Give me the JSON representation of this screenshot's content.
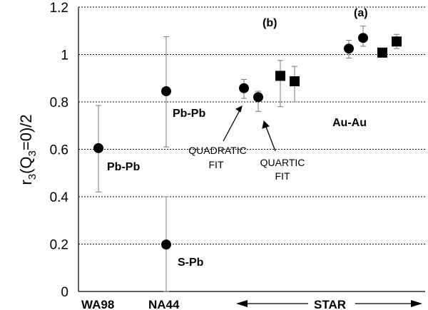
{
  "chart_data": {
    "type": "scatter",
    "ylabel_parts": {
      "r": "r",
      "sub3": "3",
      "open": "(Q",
      "sub3b": "3",
      "rest": "=0)/2"
    },
    "ylim": [
      0,
      1.2
    ],
    "yticks": [
      "0",
      "0.2",
      "0.4",
      "0.6",
      "0.8",
      "1",
      "1.2"
    ],
    "ytick_values": [
      0,
      0.2,
      0.4,
      0.6,
      0.8,
      1.0,
      1.2
    ],
    "grid": "dotted horizontal",
    "x_categories": [
      "WA98",
      "NA44",
      "STAR"
    ],
    "points": [
      {
        "group": "WA98",
        "marker": "circle",
        "y": 0.605,
        "err_low": 0.42,
        "err_high": 0.785
      },
      {
        "group": "NA44",
        "marker": "circle",
        "y": 0.845,
        "err_low": 0.61,
        "err_high": 1.075
      },
      {
        "group": "NA44",
        "marker": "circle",
        "y": 0.198,
        "err_low": 0.0,
        "err_high": 0.4
      },
      {
        "group": "STAR",
        "marker": "circle",
        "y": 0.858,
        "err_low": 0.815,
        "err_high": 0.895
      },
      {
        "group": "STAR",
        "marker": "circle",
        "y": 0.82,
        "err_low": 0.76,
        "err_high": 0.845
      },
      {
        "group": "STAR",
        "marker": "square",
        "y": 0.91,
        "err_low": 0.78,
        "err_high": 0.975
      },
      {
        "group": "STAR",
        "marker": "square",
        "y": 0.887,
        "err_low": 0.8,
        "err_high": 0.95
      },
      {
        "group": "STAR",
        "marker": "circle",
        "y": 1.025,
        "err_low": 0.985,
        "err_high": 1.06
      },
      {
        "group": "STAR",
        "marker": "circle",
        "y": 1.07,
        "err_low": 1.035,
        "err_high": 1.12
      },
      {
        "group": "STAR",
        "marker": "square",
        "y": 1.008,
        "err_low": 0.99,
        "err_high": 1.02
      },
      {
        "group": "STAR",
        "marker": "square",
        "y": 1.055,
        "err_low": 1.025,
        "err_high": 1.085
      }
    ],
    "annotations": {
      "pbpb_wa98": "Pb-Pb",
      "pbpb_na44": "Pb-Pb",
      "spb": "S-Pb",
      "auau": "Au-Au",
      "panel_b": "(b)",
      "panel_a": "(a)",
      "quadratic_1": "QUADRATIC",
      "quadratic_2": "FIT",
      "quartic_1": "QUARTIC",
      "quartic_2": "FIT"
    },
    "colors": {
      "marker": "#000000",
      "errorbar": "#777777",
      "grid": "#000000"
    }
  }
}
